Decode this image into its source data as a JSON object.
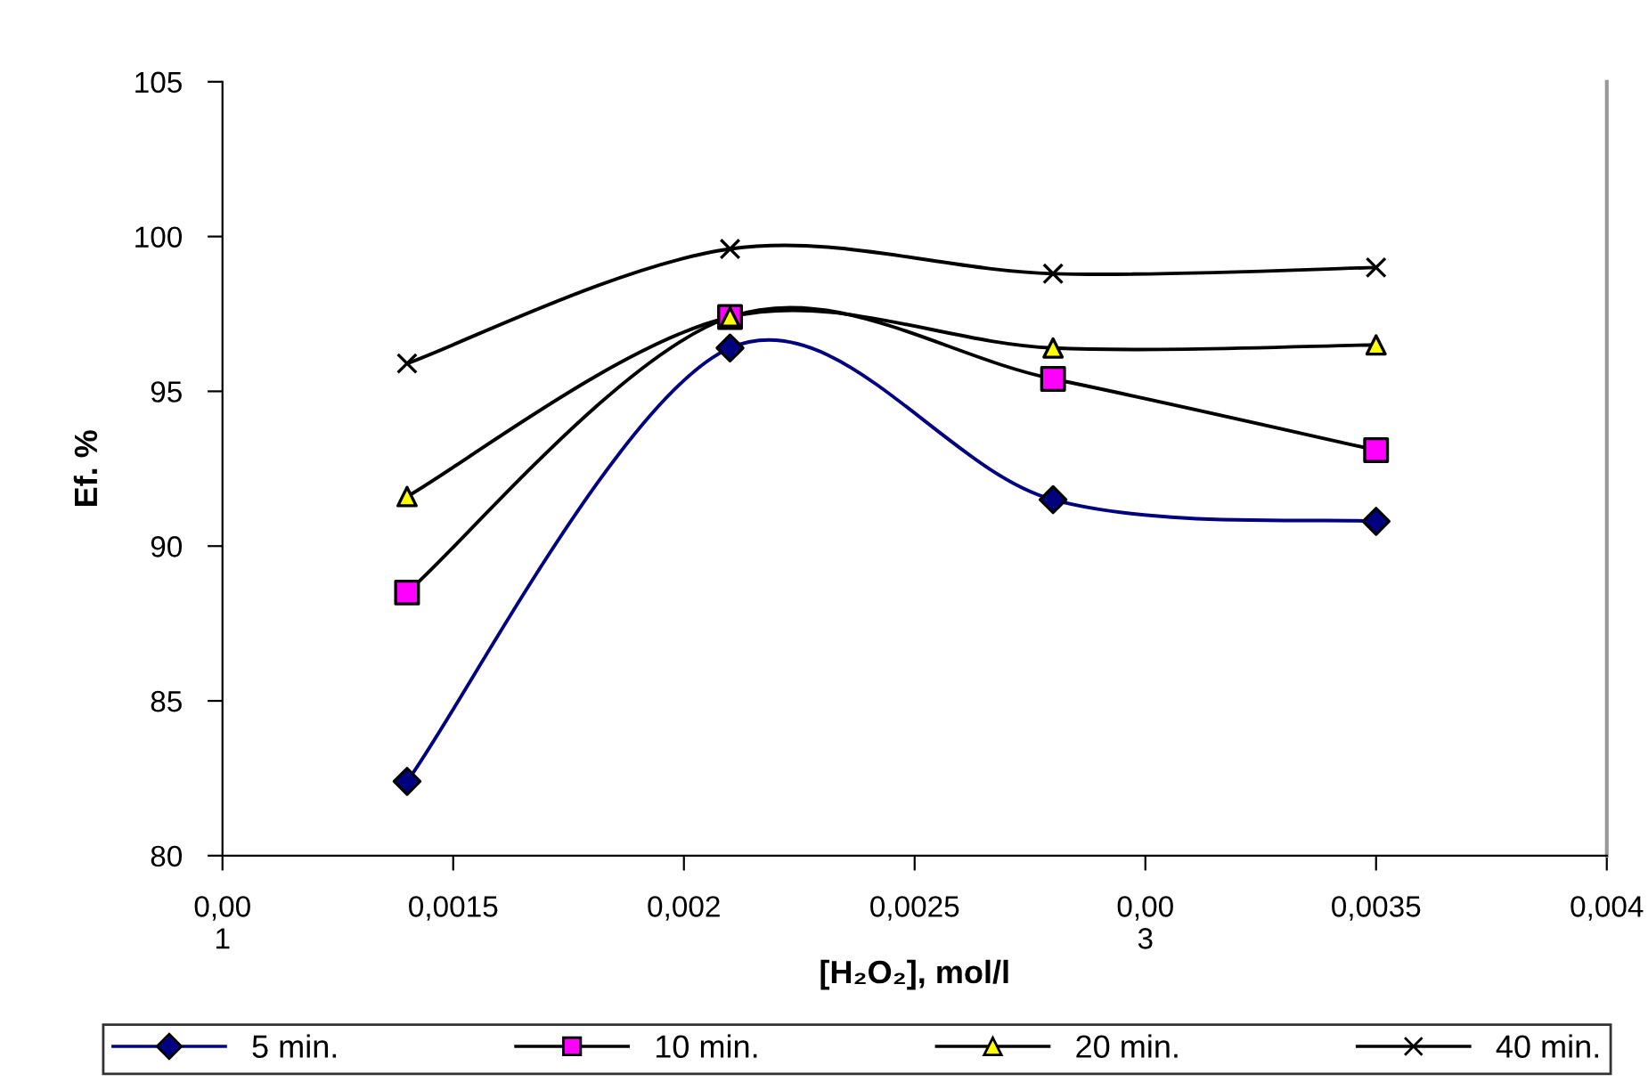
{
  "chart_data": {
    "type": "line",
    "xlabel": "[H₂O₂], mol/l",
    "ylabel": "Ef. %",
    "x": [
      0.0014,
      0.0021,
      0.0028,
      0.0035
    ],
    "series": [
      {
        "name": "5 min.",
        "color": "#000080",
        "colors": [
          "#000080",
          "#000080",
          "#000080",
          "#000080"
        ],
        "marker": "diamond",
        "values": [
          82.4,
          96.4,
          91.5,
          90.8
        ]
      },
      {
        "name": "10 min.",
        "color": "#000000",
        "colors": [
          "#ff00ff",
          "#ff00ff",
          "#ff00ff",
          "#ff00ff"
        ],
        "marker": "square",
        "values": [
          88.5,
          97.4,
          95.4,
          93.1
        ]
      },
      {
        "name": "20 min.",
        "color": "#000000",
        "colors": [
          "#ffff00",
          "#ffff00",
          "#ffff00",
          "#ffff00"
        ],
        "marker": "triangle",
        "values": [
          91.6,
          97.4,
          96.4,
          96.5
        ]
      },
      {
        "name": "40 min.",
        "color": "#000000",
        "colors": [
          "#000000",
          "#000000",
          "#000000",
          "#000000"
        ],
        "marker": "cross",
        "values": [
          95.9,
          99.6,
          98.8,
          99.0
        ]
      }
    ],
    "xlim": [
      0.001,
      0.004
    ],
    "xticks": [
      {
        "value": 0.001,
        "label": "0,00\n1"
      },
      {
        "value": 0.0015,
        "label": "0,0015"
      },
      {
        "value": 0.002,
        "label": "0,002"
      },
      {
        "value": 0.0025,
        "label": "0,0025"
      },
      {
        "value": 0.003,
        "label": "0,00\n3"
      },
      {
        "value": 0.0035,
        "label": "0,0035"
      },
      {
        "value": 0.004,
        "label": "0,004"
      }
    ],
    "ylim": [
      80,
      105
    ],
    "yticks": [
      80,
      85,
      90,
      95,
      100,
      105
    ],
    "grid": false,
    "legend": "bottom",
    "line_style": "solid"
  }
}
